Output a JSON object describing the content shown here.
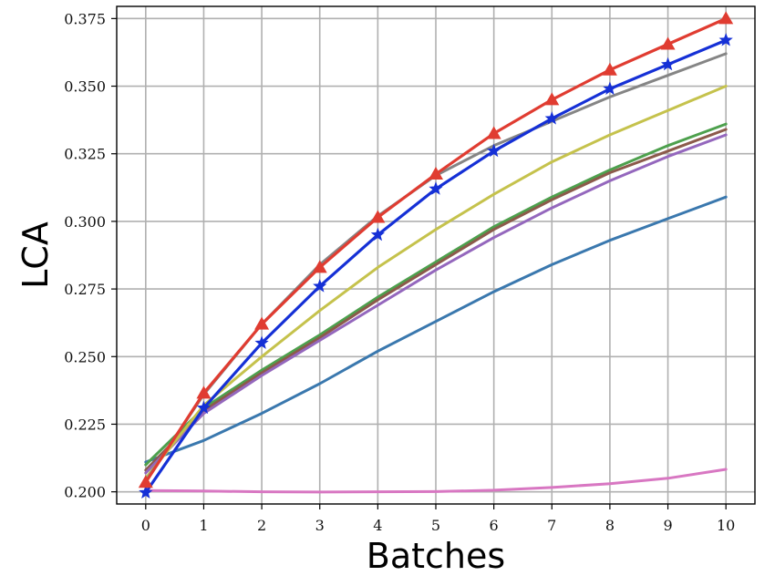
{
  "chart_data": {
    "type": "line",
    "title": "",
    "xlabel": "Batches",
    "ylabel": "LCA",
    "x": [
      0,
      1,
      2,
      3,
      4,
      5,
      6,
      7,
      8,
      9,
      10
    ],
    "xticks": [
      "0",
      "1",
      "2",
      "3",
      "4",
      "5",
      "6",
      "7",
      "8",
      "9",
      "10"
    ],
    "yticks": [
      "0.200",
      "0.225",
      "0.250",
      "0.275",
      "0.300",
      "0.325",
      "0.350",
      "0.375"
    ],
    "xlim": [
      -0.5,
      10.5
    ],
    "ylim": [
      0.1955,
      0.3795
    ],
    "grid": true,
    "series": [
      {
        "color": "#d877c2",
        "marker": "none",
        "values": [
          0.2005,
          0.2003,
          0.2,
          0.1999,
          0.2,
          0.2001,
          0.2006,
          0.2016,
          0.203,
          0.205,
          0.2083
        ]
      },
      {
        "color": "#3a78ae",
        "marker": "none",
        "values": [
          0.211,
          0.219,
          0.229,
          0.24,
          0.252,
          0.263,
          0.274,
          0.284,
          0.293,
          0.301,
          0.309
        ]
      },
      {
        "color": "#4da04d",
        "marker": "none",
        "values": [
          0.21,
          0.231,
          0.245,
          0.258,
          0.272,
          0.285,
          0.298,
          0.309,
          0.319,
          0.328,
          0.336
        ]
      },
      {
        "color": "#8c5a4b",
        "marker": "none",
        "values": [
          0.208,
          0.23,
          0.244,
          0.257,
          0.271,
          0.284,
          0.297,
          0.308,
          0.318,
          0.326,
          0.334
        ]
      },
      {
        "color": "#9467bd",
        "marker": "none",
        "values": [
          0.207,
          0.229,
          0.243,
          0.256,
          0.269,
          0.282,
          0.294,
          0.305,
          0.315,
          0.324,
          0.332
        ]
      },
      {
        "color": "#c5c24c",
        "marker": "none",
        "values": [
          0.205,
          0.232,
          0.25,
          0.267,
          0.283,
          0.297,
          0.31,
          0.322,
          0.332,
          0.341,
          0.35
        ]
      },
      {
        "color": "#858585",
        "marker": "none",
        "values": [
          0.204,
          0.236,
          0.262,
          0.284,
          0.302,
          0.317,
          0.328,
          0.337,
          0.346,
          0.354,
          0.362
        ]
      },
      {
        "color": "#1530d6",
        "marker": "star",
        "values": [
          0.1997,
          0.231,
          0.255,
          0.276,
          0.295,
          0.312,
          0.326,
          0.338,
          0.349,
          0.358,
          0.367
        ]
      },
      {
        "color": "#e03c31",
        "marker": "triangle",
        "values": [
          0.2035,
          0.2365,
          0.262,
          0.283,
          0.3015,
          0.3175,
          0.3325,
          0.345,
          0.356,
          0.3655,
          0.375
        ]
      }
    ]
  }
}
